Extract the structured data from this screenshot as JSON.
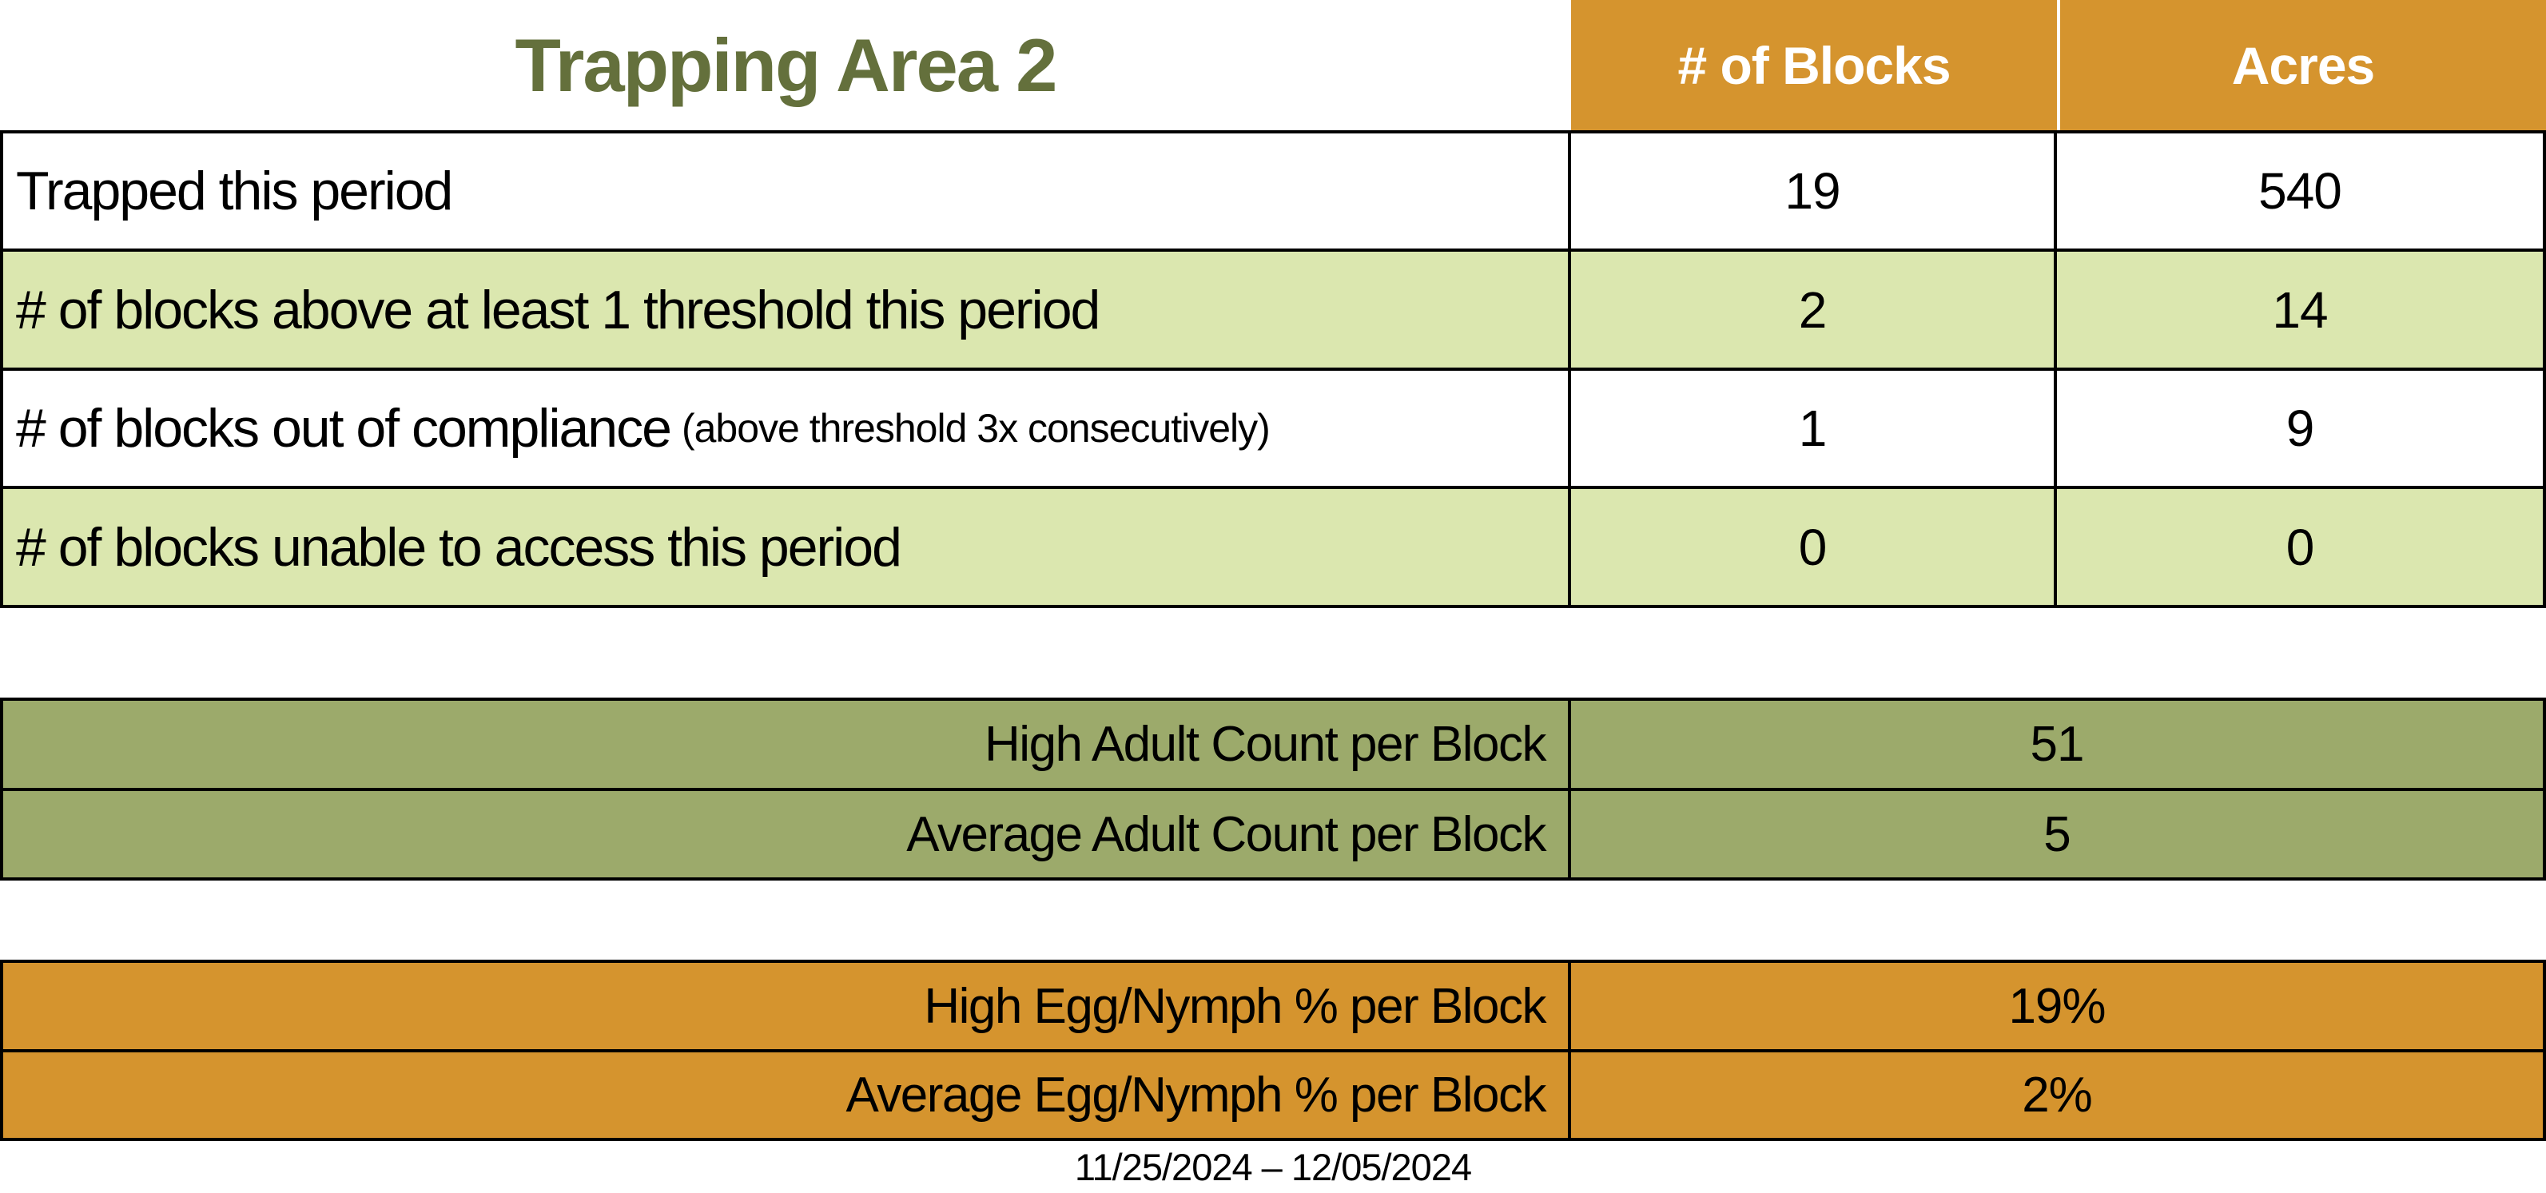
{
  "title": "Trapping Area 2",
  "date_range": "11/25/2024 – 12/05/2024",
  "colors": {
    "title_green": "#64703C",
    "header_orange": "#D5942E",
    "row_green": "#DBE7AF",
    "olive": "#9CAA6B",
    "border": "#000000",
    "header_text": "#FFFFFF",
    "text": "#000000",
    "background": "#FFFFFF"
  },
  "summary_table": {
    "col_headers": {
      "blocks": "# of Blocks",
      "acres": "Acres"
    },
    "rows": [
      {
        "label": "Trapped this period",
        "note": "",
        "blocks": "19",
        "acres": "540"
      },
      {
        "label": "# of blocks above at least 1 threshold this period",
        "note": "",
        "blocks": "2",
        "acres": "14"
      },
      {
        "label": "# of blocks out of compliance",
        "note": "(above threshold 3x consecutively)",
        "blocks": "1",
        "acres": "9"
      },
      {
        "label": "# of blocks unable to access this period",
        "note": "",
        "blocks": "0",
        "acres": "0"
      }
    ]
  },
  "adult_count_table": {
    "rows": [
      {
        "label": "High Adult Count per Block",
        "value": "51"
      },
      {
        "label": "Average Adult Count per Block",
        "value": "5"
      }
    ]
  },
  "egg_nymph_table": {
    "rows": [
      {
        "label": "High Egg/Nymph % per Block",
        "value": "19%"
      },
      {
        "label": "Average Egg/Nymph % per Block",
        "value": "2%"
      }
    ]
  },
  "chart_data": {
    "type": "table",
    "title": "Trapping Area 2",
    "date_range": "11/25/2024 – 12/05/2024",
    "columns": [
      "",
      "# of Blocks",
      "Acres"
    ],
    "rows": [
      [
        "Trapped this period",
        19,
        540
      ],
      [
        "# of blocks above at least 1 threshold this period",
        2,
        14
      ],
      [
        "# of blocks out of compliance (above threshold 3x consecutively)",
        1,
        9
      ],
      [
        "# of blocks unable to access this period",
        0,
        0
      ]
    ],
    "adult_counts": [
      [
        "High Adult Count per Block",
        51
      ],
      [
        "Average Adult Count per Block",
        5
      ]
    ],
    "egg_nymph_percent": [
      [
        "High Egg/Nymph % per Block",
        "19%"
      ],
      [
        "Average Egg/Nymph % per Block",
        "2%"
      ]
    ]
  }
}
